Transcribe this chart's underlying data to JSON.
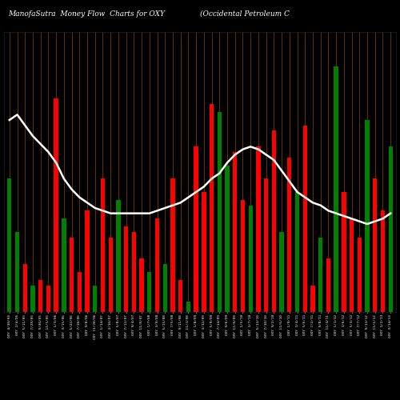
{
  "title_left": "ManofaSutra  Money Flow  Charts for OXY",
  "title_right": "(Occidental Petroleum C",
  "background_color": "#000000",
  "bar_colors": [
    "green",
    "green",
    "red",
    "green",
    "red",
    "red",
    "red",
    "green",
    "red",
    "red",
    "red",
    "green",
    "red",
    "red",
    "green",
    "red",
    "red",
    "red",
    "green",
    "red",
    "green",
    "red",
    "red",
    "green",
    "red",
    "red",
    "red",
    "green",
    "green",
    "red",
    "red",
    "green",
    "red",
    "red",
    "red",
    "green",
    "red",
    "green",
    "red",
    "red",
    "green",
    "red",
    "green",
    "red",
    "red",
    "red",
    "green",
    "red",
    "red",
    "green"
  ],
  "bar_heights": [
    0.5,
    0.3,
    0.18,
    0.1,
    0.12,
    0.1,
    0.8,
    0.35,
    0.28,
    0.15,
    0.38,
    0.1,
    0.5,
    0.28,
    0.42,
    0.32,
    0.3,
    0.2,
    0.15,
    0.35,
    0.18,
    0.5,
    0.12,
    0.04,
    0.62,
    0.45,
    0.78,
    0.75,
    0.55,
    0.6,
    0.42,
    0.4,
    0.62,
    0.5,
    0.68,
    0.3,
    0.58,
    0.45,
    0.7,
    0.1,
    0.28,
    0.2,
    0.92,
    0.45,
    0.35,
    0.28,
    0.72,
    0.5,
    0.38,
    0.62
  ],
  "line_values": [
    0.72,
    0.74,
    0.7,
    0.66,
    0.63,
    0.6,
    0.56,
    0.5,
    0.46,
    0.43,
    0.41,
    0.39,
    0.38,
    0.37,
    0.37,
    0.37,
    0.37,
    0.37,
    0.37,
    0.38,
    0.39,
    0.4,
    0.41,
    0.43,
    0.45,
    0.47,
    0.5,
    0.52,
    0.56,
    0.59,
    0.61,
    0.62,
    0.61,
    0.59,
    0.57,
    0.53,
    0.49,
    0.45,
    0.43,
    0.41,
    0.4,
    0.38,
    0.37,
    0.36,
    0.35,
    0.34,
    0.33,
    0.34,
    0.35,
    0.37
  ],
  "grid_color": "#8B4500",
  "line_color": "#ffffff",
  "title_color": "#ffffff",
  "title_fontsize": 6.5,
  "bar_width": 0.55,
  "ylim": [
    0,
    1.05
  ],
  "date_labels": [
    "OXY 4/30/04",
    "OXY 2/4/05",
    "OXY 5/11/05",
    "OXY 7/28/05",
    "OXY 9/30/05",
    "OXY 11/5/05",
    "OXY 1/3/06",
    "OXY 3/15/06",
    "OXY 5/22/06",
    "OXY 7/18/06",
    "OXY 9/8/06",
    "OXY 11/20/06",
    "OXY 1/14/07",
    "OXY 3/10/07",
    "OXY 5/8/07",
    "OXY 7/12/07",
    "OXY 9/4/07",
    "OXY 11/8/07",
    "OXY 1/7/08",
    "OXY 3/9/08",
    "OXY 5/15/08",
    "OXY 7/5/08",
    "OXY 9/11/08",
    "OXY 11/3/08",
    "OXY 1/8/09",
    "OXY 3/12/09",
    "OXY 5/9/09",
    "OXY 7/14/09",
    "OXY 9/6/09",
    "OXY 11/8/09",
    "OXY 1/5/10",
    "OXY 3/7/10",
    "OXY 5/13/10",
    "OXY 7/10/10",
    "OXY 9/2/10",
    "OXY 11/6/10",
    "OXY 1/9/11",
    "OXY 3/4/11",
    "OXY 5/6/11",
    "OXY 7/2/11",
    "OXY 9/8/11",
    "OXY 11/4/11",
    "OXY 1/1/12",
    "OXY 3/6/12",
    "OXY 5/3/12",
    "OXY 7/7/12",
    "OXY 9/13/12",
    "OXY 11/1/12",
    "OXY 1/2/13",
    "OXY 3/14/13"
  ]
}
